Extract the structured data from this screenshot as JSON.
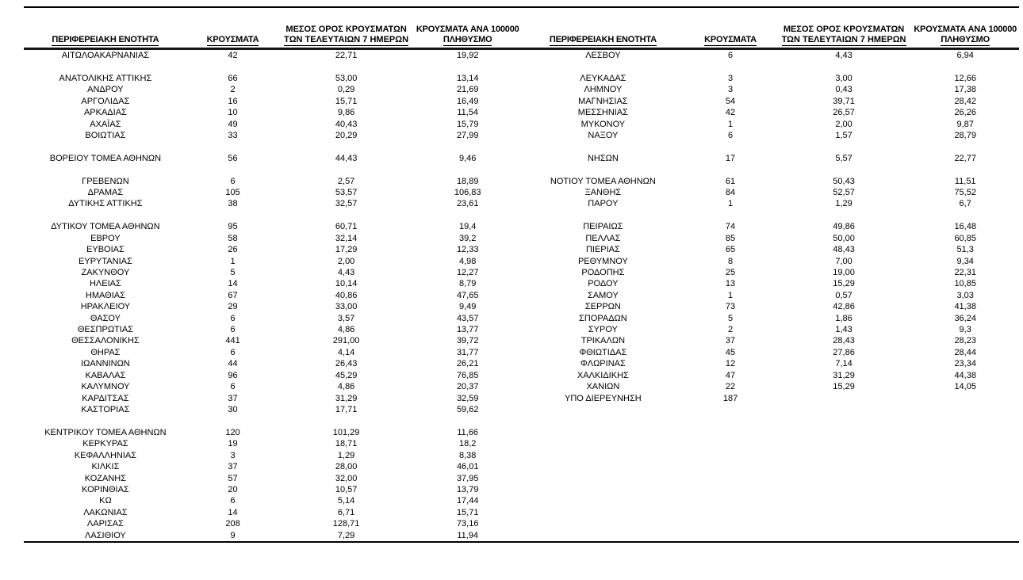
{
  "page": {
    "background_color": "#ffffff",
    "text_color": "#000000",
    "rule_color": "#000000"
  },
  "table": {
    "headers": {
      "region": "ΠΕΡΙΦΕΡΕΙΑΚΗ ΕΝΟΤΗΤΑ",
      "cases": "ΚΡΟΥΣΜΑΤΑ",
      "avg_line1": "ΜΕΣΟΣ ΟΡΟΣ ΚΡΟΥΣΜΑΤΩΝ",
      "avg_line2": "ΤΩΝ ΤΕΛΕΥΤΑΙΩΝ 7 ΗΜΕΡΩΝ",
      "per100k_line1": "ΚΡΟΥΣΜΑΤΑ ΑΝΑ 100000",
      "per100k_line2": "ΠΛΗΘΥΣΜΟ"
    },
    "rows": [
      {
        "left": [
          "ΑΙΤΩΛΟΑΚΑΡΝΑΝΙΑΣ",
          "42",
          "22,71",
          "19,92"
        ],
        "right": [
          "ΛΕΣΒΟΥ",
          "6",
          "4,43",
          "6,94"
        ]
      },
      {
        "left": null,
        "right": null
      },
      {
        "left": [
          "ΑΝΑΤΟΛΙΚΗΣ ΑΤΤΙΚΗΣ",
          "66",
          "53,00",
          "13,14"
        ],
        "right": [
          "ΛΕΥΚΑΔΑΣ",
          "3",
          "3,00",
          "12,66"
        ]
      },
      {
        "left": [
          "ΑΝΔΡΟΥ",
          "2",
          "0,29",
          "21,69"
        ],
        "right": [
          "ΛΗΜΝΟΥ",
          "3",
          "0,43",
          "17,38"
        ]
      },
      {
        "left": [
          "ΑΡΓΟΛΙΔΑΣ",
          "16",
          "15,71",
          "16,49"
        ],
        "right": [
          "ΜΑΓΝΗΣΙΑΣ",
          "54",
          "39,71",
          "28,42"
        ]
      },
      {
        "left": [
          "ΑΡΚΑΔΙΑΣ",
          "10",
          "9,86",
          "11,54"
        ],
        "right": [
          "ΜΕΣΣΗΝΙΑΣ",
          "42",
          "26,57",
          "26,26"
        ]
      },
      {
        "left": [
          "ΑΧΑΪΑΣ",
          "49",
          "40,43",
          "15,79"
        ],
        "right": [
          "ΜΥΚΟΝΟΥ",
          "1",
          "2,00",
          "9,87"
        ]
      },
      {
        "left": [
          "ΒΟΙΩΤΙΑΣ",
          "33",
          "20,29",
          "27,99"
        ],
        "right": [
          "ΝΑΞΟΥ",
          "6",
          "1,57",
          "28,79"
        ]
      },
      {
        "left": null,
        "right": null
      },
      {
        "left": [
          "ΒΟΡΕΙΟΥ ΤΟΜΕΑ ΑΘΗΝΩΝ",
          "56",
          "44,43",
          "9,46"
        ],
        "right": [
          "ΝΗΣΩΝ",
          "17",
          "5,57",
          "22,77"
        ]
      },
      {
        "left": null,
        "right": null
      },
      {
        "left": [
          "ΓΡΕΒΕΝΩΝ",
          "6",
          "2,57",
          "18,89"
        ],
        "right": [
          "ΝΟΤΙΟΥ ΤΟΜΕΑ ΑΘΗΝΩΝ",
          "61",
          "50,43",
          "11,51"
        ]
      },
      {
        "left": [
          "ΔΡΑΜΑΣ",
          "105",
          "53,57",
          "106,83"
        ],
        "right": [
          "ΞΑΝΘΗΣ",
          "84",
          "52,57",
          "75,52"
        ]
      },
      {
        "left": [
          "ΔΥΤΙΚΗΣ ΑΤΤΙΚΗΣ",
          "38",
          "32,57",
          "23,61"
        ],
        "right": [
          "ΠΑΡΟΥ",
          "1",
          "1,29",
          "6,7"
        ]
      },
      {
        "left": null,
        "right": null
      },
      {
        "left": [
          "ΔΥΤΙΚΟΥ ΤΟΜΕΑ ΑΘΗΝΩΝ",
          "95",
          "60,71",
          "19,4"
        ],
        "right": [
          "ΠΕΙΡΑΙΩΣ",
          "74",
          "49,86",
          "16,48"
        ]
      },
      {
        "left": [
          "ΕΒΡΟΥ",
          "58",
          "32,14",
          "39,2"
        ],
        "right": [
          "ΠΕΛΛΑΣ",
          "85",
          "50,00",
          "60,85"
        ]
      },
      {
        "left": [
          "ΕΥΒΟΙΑΣ",
          "26",
          "17,29",
          "12,33"
        ],
        "right": [
          "ΠΙΕΡΙΑΣ",
          "65",
          "48,43",
          "51,3"
        ]
      },
      {
        "left": [
          "ΕΥΡΥΤΑΝΙΑΣ",
          "1",
          "2,00",
          "4,98"
        ],
        "right": [
          "ΡΕΘΥΜΝΟΥ",
          "8",
          "7,00",
          "9,34"
        ]
      },
      {
        "left": [
          "ΖΑΚΥΝΘΟΥ",
          "5",
          "4,43",
          "12,27"
        ],
        "right": [
          "ΡΟΔΟΠΗΣ",
          "25",
          "19,00",
          "22,31"
        ]
      },
      {
        "left": [
          "ΗΛΕΙΑΣ",
          "14",
          "10,14",
          "8,79"
        ],
        "right": [
          "ΡΟΔΟΥ",
          "13",
          "15,29",
          "10,85"
        ]
      },
      {
        "left": [
          "ΗΜΑΘΙΑΣ",
          "67",
          "40,86",
          "47,65"
        ],
        "right": [
          "ΣΑΜΟΥ",
          "1",
          "0,57",
          "3,03"
        ]
      },
      {
        "left": [
          "ΗΡΑΚΛΕΙΟΥ",
          "29",
          "33,00",
          "9,49"
        ],
        "right": [
          "ΣΕΡΡΩΝ",
          "73",
          "42,86",
          "41,38"
        ]
      },
      {
        "left": [
          "ΘΑΣΟΥ",
          "6",
          "3,57",
          "43,57"
        ],
        "right": [
          "ΣΠΟΡΑΔΩΝ",
          "5",
          "1,86",
          "36,24"
        ]
      },
      {
        "left": [
          "ΘΕΣΠΡΩΤΙΑΣ",
          "6",
          "4,86",
          "13,77"
        ],
        "right": [
          "ΣΥΡΟΥ",
          "2",
          "1,43",
          "9,3"
        ]
      },
      {
        "left": [
          "ΘΕΣΣΑΛΟΝΙΚΗΣ",
          "441",
          "291,00",
          "39,72"
        ],
        "right": [
          "ΤΡΙΚΑΛΩΝ",
          "37",
          "28,43",
          "28,23"
        ]
      },
      {
        "left": [
          "ΘΗΡΑΣ",
          "6",
          "4,14",
          "31,77"
        ],
        "right": [
          "ΦΘΙΩΤΙΔΑΣ",
          "45",
          "27,86",
          "28,44"
        ]
      },
      {
        "left": [
          "ΙΩΑΝΝΙΝΩΝ",
          "44",
          "26,43",
          "26,21"
        ],
        "right": [
          "ΦΛΩΡΙΝΑΣ",
          "12",
          "7,14",
          "23,34"
        ]
      },
      {
        "left": [
          "ΚΑΒΑΛΑΣ",
          "96",
          "45,29",
          "76,85"
        ],
        "right": [
          "ΧΑΛΚΙΔΙΚΗΣ",
          "47",
          "31,29",
          "44,38"
        ]
      },
      {
        "left": [
          "ΚΑΛΥΜΝΟΥ",
          "6",
          "4,86",
          "20,37"
        ],
        "right": [
          "ΧΑΝΙΩΝ",
          "22",
          "15,29",
          "14,05"
        ]
      },
      {
        "left": [
          "ΚΑΡΔΙΤΣΑΣ",
          "37",
          "31,29",
          "32,59"
        ],
        "right": [
          "ΥΠΟ ΔΙΕΡΕΥΝΗΣΗ",
          "187",
          "",
          ""
        ]
      },
      {
        "left": [
          "ΚΑΣΤΟΡΙΑΣ",
          "30",
          "17,71",
          "59,62"
        ],
        "right": null
      },
      {
        "left": null,
        "right": null
      },
      {
        "left": [
          "ΚΕΝΤΡΙΚΟΥ ΤΟΜΕΑ ΑΘΗΝΩΝ",
          "120",
          "101,29",
          "11,66"
        ],
        "right": null
      },
      {
        "left": [
          "ΚΕΡΚΥΡΑΣ",
          "19",
          "18,71",
          "18,2"
        ],
        "right": null
      },
      {
        "left": [
          "ΚΕΦΑΛΛΗΝΙΑΣ",
          "3",
          "1,29",
          "8,38"
        ],
        "right": null
      },
      {
        "left": [
          "ΚΙΛΚΙΣ",
          "37",
          "28,00",
          "46,01"
        ],
        "right": null
      },
      {
        "left": [
          "ΚΟΖΑΝΗΣ",
          "57",
          "32,00",
          "37,95"
        ],
        "right": null
      },
      {
        "left": [
          "ΚΟΡΙΝΘΙΑΣ",
          "20",
          "10,57",
          "13,79"
        ],
        "right": null
      },
      {
        "left": [
          "ΚΩ",
          "6",
          "5,14",
          "17,44"
        ],
        "right": null
      },
      {
        "left": [
          "ΛΑΚΩΝΙΑΣ",
          "14",
          "6,71",
          "15,71"
        ],
        "right": null
      },
      {
        "left": [
          "ΛΑΡΙΣΑΣ",
          "208",
          "128,71",
          "73,16"
        ],
        "right": null
      },
      {
        "left": [
          "ΛΑΣΙΘΙΟΥ",
          "9",
          "7,29",
          "11,94"
        ],
        "right": null
      }
    ]
  }
}
